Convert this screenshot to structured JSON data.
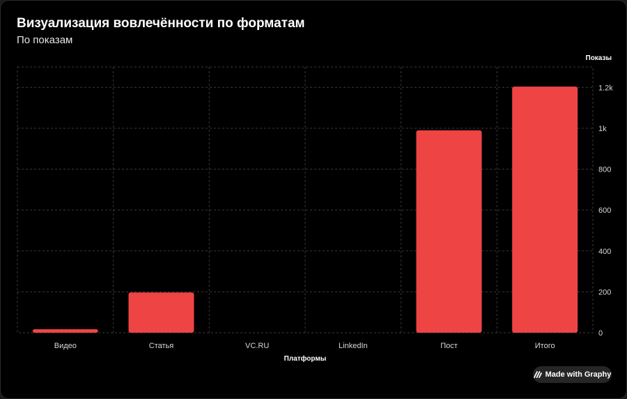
{
  "header": {
    "title": "Визуализация вовлечённости по форматам",
    "subtitle": "По показам"
  },
  "badge": {
    "label": "Made with Graphy",
    "icon": "graphy-logo-icon"
  },
  "colors": {
    "background": "#000000",
    "bar": "#ef4444",
    "grid": "#3a3a3a",
    "text": "#ffffff",
    "tick_text": "#d9d9d9"
  },
  "chart_data": {
    "type": "bar",
    "categories": [
      "Видео",
      "Статья",
      "VC.RU",
      "LinkedIn",
      "Пост",
      "Итого"
    ],
    "values": [
      17,
      197,
      0,
      0,
      990,
      1204
    ],
    "xlabel": "Платформы",
    "ylabel": "Показы",
    "ylim": [
      0,
      1300
    ],
    "yticks": [
      0,
      200,
      400,
      600,
      800,
      1000,
      1200
    ],
    "ytick_labels": [
      "0",
      "200",
      "400",
      "600",
      "800",
      "1k",
      "1.2k"
    ],
    "y_axis_side": "right",
    "grid": true,
    "grid_style": "dashed",
    "legend": false
  }
}
